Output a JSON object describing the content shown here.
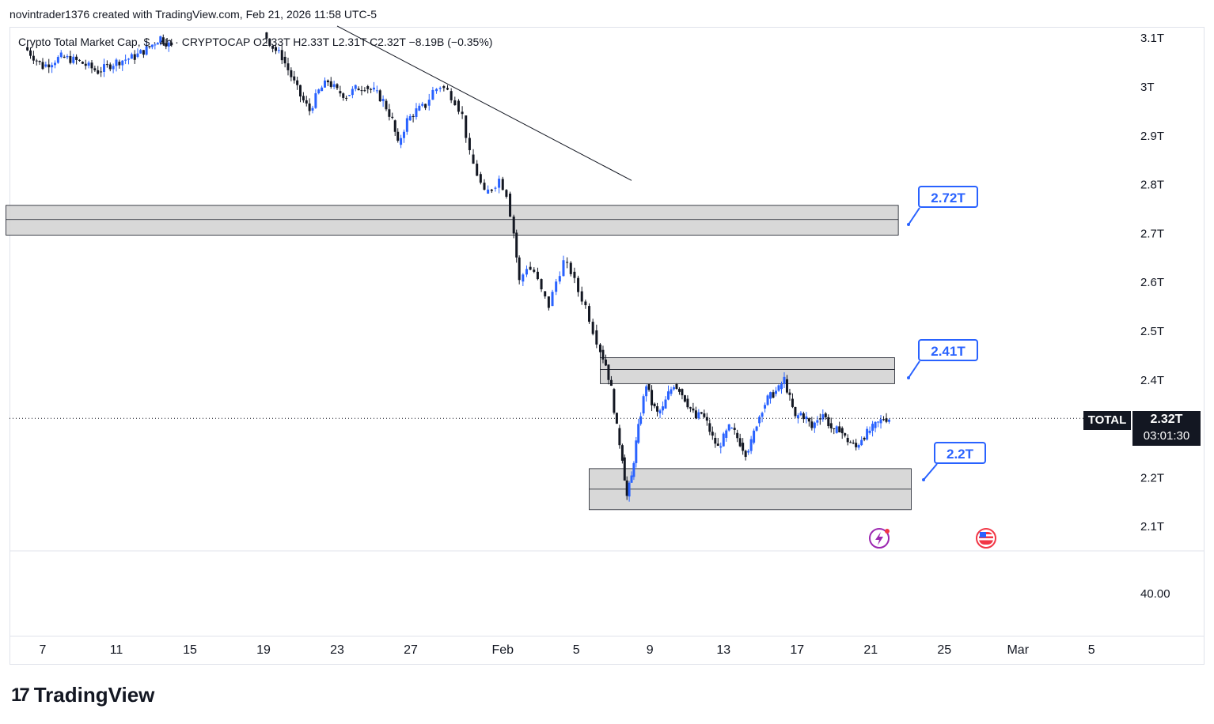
{
  "header": {
    "attribution": "novintrader1376 created with TradingView.com, Feb 21, 2026 11:58 UTC-5"
  },
  "legend": {
    "text": "Crypto Total Market Cap, $ · 4h · CRYPTOCAP  O2.33T  H2.33T  L2.31T  C2.32T  −8.19B (−0.35%)"
  },
  "price_tag": {
    "symbol": "TOTAL",
    "price": "2.32T",
    "countdown": "03:01:30"
  },
  "callouts": [
    {
      "label": "2.72T",
      "value": 2.72
    },
    {
      "label": "2.41T",
      "value": 2.41
    },
    {
      "label": "2.2T",
      "value": 2.2
    }
  ],
  "branding": {
    "logo_text": "TradingView"
  },
  "colors": {
    "up": "#2962ff",
    "down": "#131722",
    "zone_fill": "#d1d1d1",
    "callout": "#2962ff"
  },
  "chart_data": {
    "type": "candlestick",
    "symbol": "TOTAL",
    "timeframe": "4h",
    "y_axis": {
      "ticks": [
        {
          "label": "3.1T",
          "value": 3.1
        },
        {
          "label": "3T",
          "value": 3.0
        },
        {
          "label": "2.9T",
          "value": 2.9
        },
        {
          "label": "2.8T",
          "value": 2.8
        },
        {
          "label": "2.7T",
          "value": 2.7
        },
        {
          "label": "2.6T",
          "value": 2.6
        },
        {
          "label": "2.5T",
          "value": 2.5
        },
        {
          "label": "2.4T",
          "value": 2.4
        },
        {
          "label": "2.2T",
          "value": 2.2
        },
        {
          "label": "2.1T",
          "value": 2.1
        }
      ],
      "range": [
        2.05,
        3.12
      ]
    },
    "lower_pane_tick": "40.00",
    "x_axis": {
      "ticks": [
        {
          "label": "7",
          "day": 7
        },
        {
          "label": "11",
          "day": 11
        },
        {
          "label": "15",
          "day": 15
        },
        {
          "label": "19",
          "day": 19
        },
        {
          "label": "23",
          "day": 23
        },
        {
          "label": "27",
          "day": 27
        },
        {
          "label": "Feb",
          "day": 32
        },
        {
          "label": "5",
          "day": 36
        },
        {
          "label": "9",
          "day": 40
        },
        {
          "label": "13",
          "day": 44
        },
        {
          "label": "17",
          "day": 48
        },
        {
          "label": "21",
          "day": 52
        },
        {
          "label": "25",
          "day": 56
        },
        {
          "label": "Mar",
          "day": 60
        },
        {
          "label": "5",
          "day": 64
        }
      ]
    },
    "zones": [
      {
        "top": 2.756,
        "bottom": 2.695,
        "mid": 2.727,
        "start_day": 5.0,
        "end_day": 53.5
      },
      {
        "top": 2.444,
        "bottom": 2.391,
        "mid": 2.42,
        "start_day": 37.3,
        "end_day": 53.3
      },
      {
        "top": 2.217,
        "bottom": 2.133,
        "mid": 2.175,
        "start_day": 36.7,
        "end_day": 54.2
      }
    ],
    "trendline": {
      "start": {
        "day": 23,
        "value": 3.123
      },
      "end": {
        "day": 39,
        "value": 2.807
      }
    },
    "last_close": 2.32,
    "path": [
      [
        6.0,
        3.08
      ],
      [
        7.0,
        3.04
      ],
      [
        8.0,
        3.06
      ],
      [
        9.0,
        3.05
      ],
      [
        10.0,
        3.03
      ],
      [
        11.0,
        3.05
      ],
      [
        12.0,
        3.06
      ],
      [
        12.8,
        3.08
      ],
      [
        13.4,
        3.1
      ],
      [
        14.0,
        3.08
      ],
      [
        19.0,
        3.11
      ],
      [
        19.5,
        3.08
      ],
      [
        20.0,
        3.06
      ],
      [
        20.5,
        3.02
      ],
      [
        21.0,
        2.98
      ],
      [
        21.5,
        2.95
      ],
      [
        22.0,
        2.99
      ],
      [
        22.5,
        3.01
      ],
      [
        23.0,
        2.99
      ],
      [
        23.5,
        2.98
      ],
      [
        24.0,
        2.995
      ],
      [
        24.5,
        3.0
      ],
      [
        25.0,
        2.99
      ],
      [
        25.5,
        2.97
      ],
      [
        26.0,
        2.93
      ],
      [
        26.3,
        2.88
      ],
      [
        26.8,
        2.93
      ],
      [
        27.3,
        2.95
      ],
      [
        27.8,
        2.96
      ],
      [
        28.2,
        2.99
      ],
      [
        28.6,
        3.0
      ],
      [
        29.0,
        2.99
      ],
      [
        29.4,
        2.97
      ],
      [
        29.8,
        2.94
      ],
      [
        30.2,
        2.86
      ],
      [
        30.6,
        2.82
      ],
      [
        31.0,
        2.78
      ],
      [
        31.4,
        2.79
      ],
      [
        31.8,
        2.81
      ],
      [
        32.2,
        2.78
      ],
      [
        32.6,
        2.7
      ],
      [
        32.9,
        2.6
      ],
      [
        33.3,
        2.63
      ],
      [
        33.7,
        2.62
      ],
      [
        34.1,
        2.58
      ],
      [
        34.5,
        2.55
      ],
      [
        34.9,
        2.6
      ],
      [
        35.3,
        2.64
      ],
      [
        35.7,
        2.62
      ],
      [
        36.1,
        2.58
      ],
      [
        36.5,
        2.55
      ],
      [
        36.9,
        2.5
      ],
      [
        37.3,
        2.46
      ],
      [
        37.6,
        2.43
      ],
      [
        37.9,
        2.38
      ],
      [
        38.2,
        2.3
      ],
      [
        38.5,
        2.24
      ],
      [
        38.75,
        2.16
      ],
      [
        39.0,
        2.2
      ],
      [
        39.25,
        2.27
      ],
      [
        39.5,
        2.33
      ],
      [
        39.8,
        2.39
      ],
      [
        40.1,
        2.35
      ],
      [
        40.4,
        2.33
      ],
      [
        40.7,
        2.34
      ],
      [
        41.0,
        2.37
      ],
      [
        41.3,
        2.39
      ],
      [
        41.6,
        2.38
      ],
      [
        41.9,
        2.36
      ],
      [
        42.2,
        2.34
      ],
      [
        42.5,
        2.32
      ],
      [
        42.8,
        2.33
      ],
      [
        43.1,
        2.31
      ],
      [
        43.4,
        2.28
      ],
      [
        43.7,
        2.26
      ],
      [
        44.0,
        2.28
      ],
      [
        44.3,
        2.3
      ],
      [
        44.6,
        2.29
      ],
      [
        44.9,
        2.27
      ],
      [
        45.2,
        2.25
      ],
      [
        45.5,
        2.27
      ],
      [
        45.8,
        2.31
      ],
      [
        46.1,
        2.34
      ],
      [
        46.4,
        2.36
      ],
      [
        46.7,
        2.37
      ],
      [
        47.0,
        2.38
      ],
      [
        47.3,
        2.4
      ],
      [
        47.6,
        2.36
      ],
      [
        47.9,
        2.32
      ],
      [
        48.2,
        2.33
      ],
      [
        48.5,
        2.32
      ],
      [
        48.8,
        2.3
      ],
      [
        49.1,
        2.32
      ],
      [
        49.4,
        2.33
      ],
      [
        49.7,
        2.31
      ],
      [
        50.0,
        2.29
      ],
      [
        50.3,
        2.3
      ],
      [
        50.6,
        2.28
      ],
      [
        50.9,
        2.27
      ],
      [
        51.2,
        2.26
      ],
      [
        51.5,
        2.28
      ],
      [
        51.8,
        2.29
      ],
      [
        52.1,
        2.3
      ],
      [
        52.4,
        2.31
      ],
      [
        52.7,
        2.32
      ],
      [
        53.0,
        2.32
      ]
    ]
  }
}
